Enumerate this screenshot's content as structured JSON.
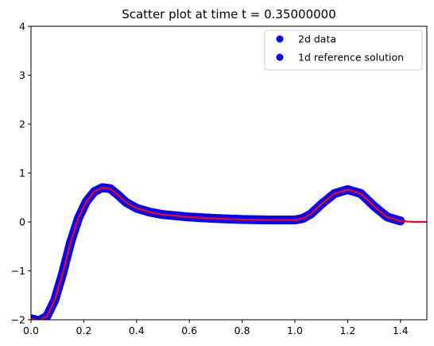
{
  "chart_data": {
    "type": "scatter",
    "title": "Scatter plot at time t =      0.35000000",
    "xlabel": "",
    "ylabel": "",
    "xlim": [
      0.0,
      1.5
    ],
    "ylim": [
      -2,
      4
    ],
    "x_ticks": [
      0.0,
      0.2,
      0.4,
      0.6,
      0.8,
      1.0,
      1.2,
      1.4
    ],
    "x_tick_labels": [
      "0.0",
      "0.2",
      "0.4",
      "0.6",
      "0.8",
      "1.0",
      "1.2",
      "1.4"
    ],
    "y_ticks": [
      -2,
      -1,
      0,
      1,
      2,
      3,
      4
    ],
    "y_tick_labels": [
      "−2",
      "−1",
      "0",
      "1",
      "2",
      "3",
      "4"
    ],
    "grid": false,
    "legend_position": "top-right",
    "series": [
      {
        "name": "2d data",
        "marker": "circle",
        "color": "#0000ff",
        "x": [
          0.0,
          0.03,
          0.06,
          0.09,
          0.12,
          0.15,
          0.18,
          0.21,
          0.24,
          0.27,
          0.3,
          0.33,
          0.36,
          0.4,
          0.45,
          0.5,
          0.6,
          0.7,
          0.8,
          0.9,
          1.0,
          1.03,
          1.06,
          1.1,
          1.15,
          1.2,
          1.25,
          1.3,
          1.35,
          1.4
        ],
        "y": [
          -1.98,
          -2.02,
          -1.93,
          -1.6,
          -1.05,
          -0.42,
          0.08,
          0.42,
          0.62,
          0.7,
          0.68,
          0.55,
          0.4,
          0.28,
          0.2,
          0.15,
          0.1,
          0.07,
          0.05,
          0.04,
          0.04,
          0.07,
          0.16,
          0.36,
          0.58,
          0.66,
          0.58,
          0.32,
          0.1,
          0.02
        ]
      },
      {
        "name": "1d reference solution",
        "marker": "line",
        "color": "#ff0000",
        "x": [
          0.0,
          0.03,
          0.06,
          0.09,
          0.12,
          0.15,
          0.18,
          0.21,
          0.24,
          0.27,
          0.3,
          0.33,
          0.36,
          0.4,
          0.45,
          0.5,
          0.6,
          0.7,
          0.8,
          0.9,
          1.0,
          1.03,
          1.06,
          1.1,
          1.15,
          1.2,
          1.25,
          1.3,
          1.35,
          1.4,
          1.45,
          1.5
        ],
        "y": [
          -1.98,
          -2.02,
          -1.93,
          -1.6,
          -1.05,
          -0.42,
          0.08,
          0.42,
          0.62,
          0.7,
          0.68,
          0.55,
          0.4,
          0.28,
          0.2,
          0.15,
          0.1,
          0.07,
          0.05,
          0.04,
          0.04,
          0.07,
          0.16,
          0.36,
          0.58,
          0.66,
          0.58,
          0.32,
          0.1,
          0.02,
          0.0,
          0.0
        ]
      }
    ]
  }
}
